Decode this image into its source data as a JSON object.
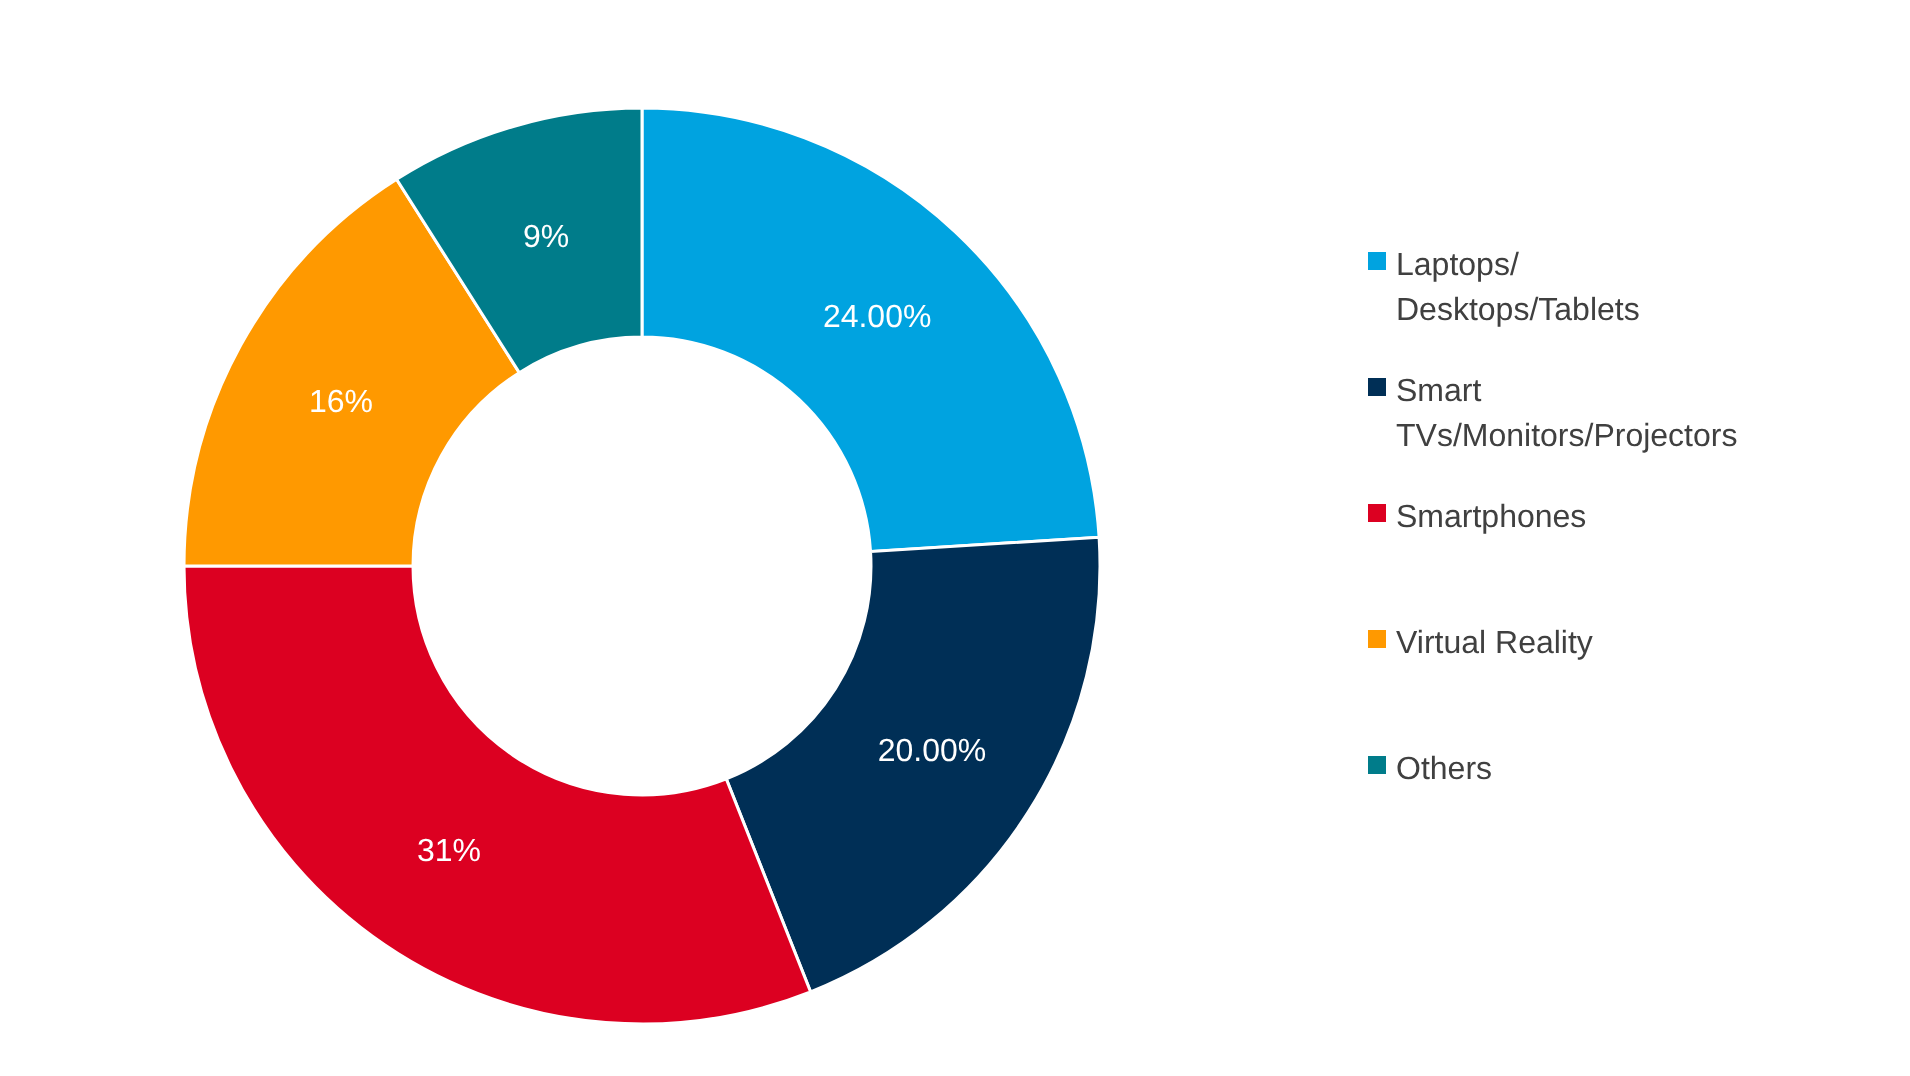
{
  "chart_data": {
    "type": "donut",
    "categories": [
      "Laptops/ Desktops/Tablets",
      "Smart TVs/Monitors/Projectors",
      "Smartphones",
      "Virtual Reality",
      "Others"
    ],
    "values": [
      24,
      20,
      31,
      16,
      9
    ],
    "colors": [
      "#00a3e0",
      "#002f56",
      "#dc0021",
      "#ff9900",
      "#007c8a"
    ],
    "value_labels": [
      "24.00%",
      "20.00%",
      "31%",
      "16%",
      "9%"
    ],
    "legend": "right"
  }
}
